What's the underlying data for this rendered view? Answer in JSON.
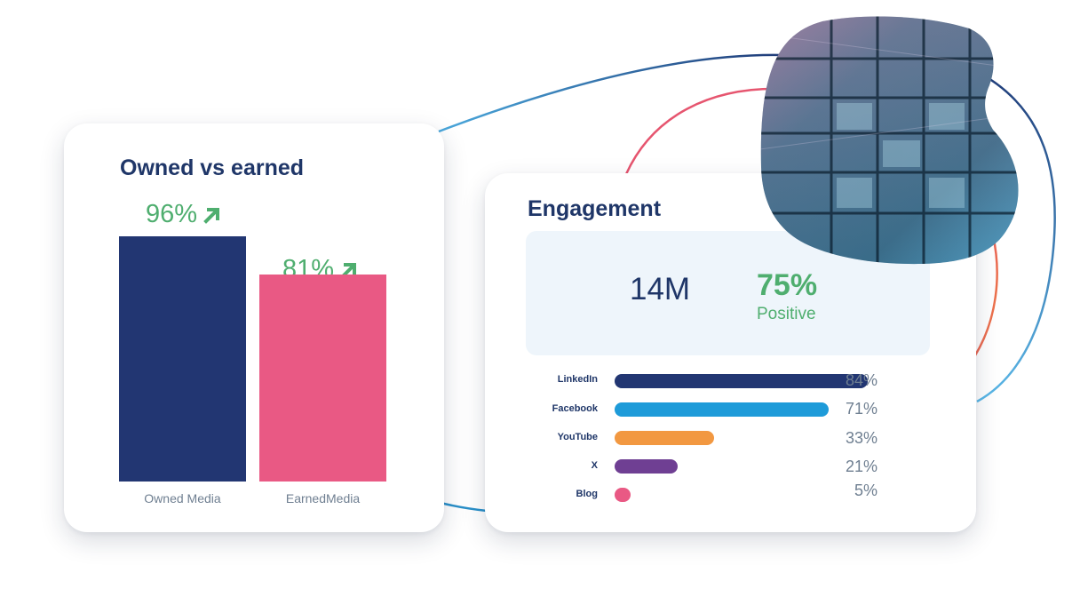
{
  "colors": {
    "navy": "#223672",
    "pink": "#e95984",
    "green": "#4fae6f",
    "linkedin": "#223672",
    "facebook": "#1e9bd9",
    "youtube": "#f29841",
    "x": "#6f3f93",
    "blog": "#e95984"
  },
  "icons": [
    "arrow-up-right-icon"
  ],
  "owned_vs_earned": {
    "title": "Owned vs earned",
    "bars": [
      {
        "label": "Owned Media",
        "value_text": "96%"
      },
      {
        "label": "EarnedMedia",
        "value_text": "81%"
      }
    ]
  },
  "engagement": {
    "title": "Engagement",
    "total": "14M",
    "positive_pct": "75%",
    "positive_label": "Positive",
    "rows": [
      {
        "label": "LinkedIn",
        "value_text": "84%"
      },
      {
        "label": "Facebook",
        "value_text": "71%"
      },
      {
        "label": "YouTube",
        "value_text": "33%"
      },
      {
        "label": "X",
        "value_text": "21%"
      },
      {
        "label": "Blog",
        "value_text": "5%"
      }
    ]
  },
  "chart_data": [
    {
      "type": "bar",
      "title": "Owned vs earned",
      "categories": [
        "Owned Media",
        "EarnedMedia"
      ],
      "values": [
        96,
        81
      ],
      "ylim": [
        0,
        100
      ],
      "grid": false
    },
    {
      "type": "bar",
      "orientation": "horizontal",
      "title": "Engagement",
      "categories": [
        "LinkedIn",
        "Facebook",
        "YouTube",
        "X",
        "Blog"
      ],
      "values": [
        84,
        71,
        33,
        21,
        5
      ],
      "xlim": [
        0,
        100
      ],
      "grid": false
    }
  ]
}
